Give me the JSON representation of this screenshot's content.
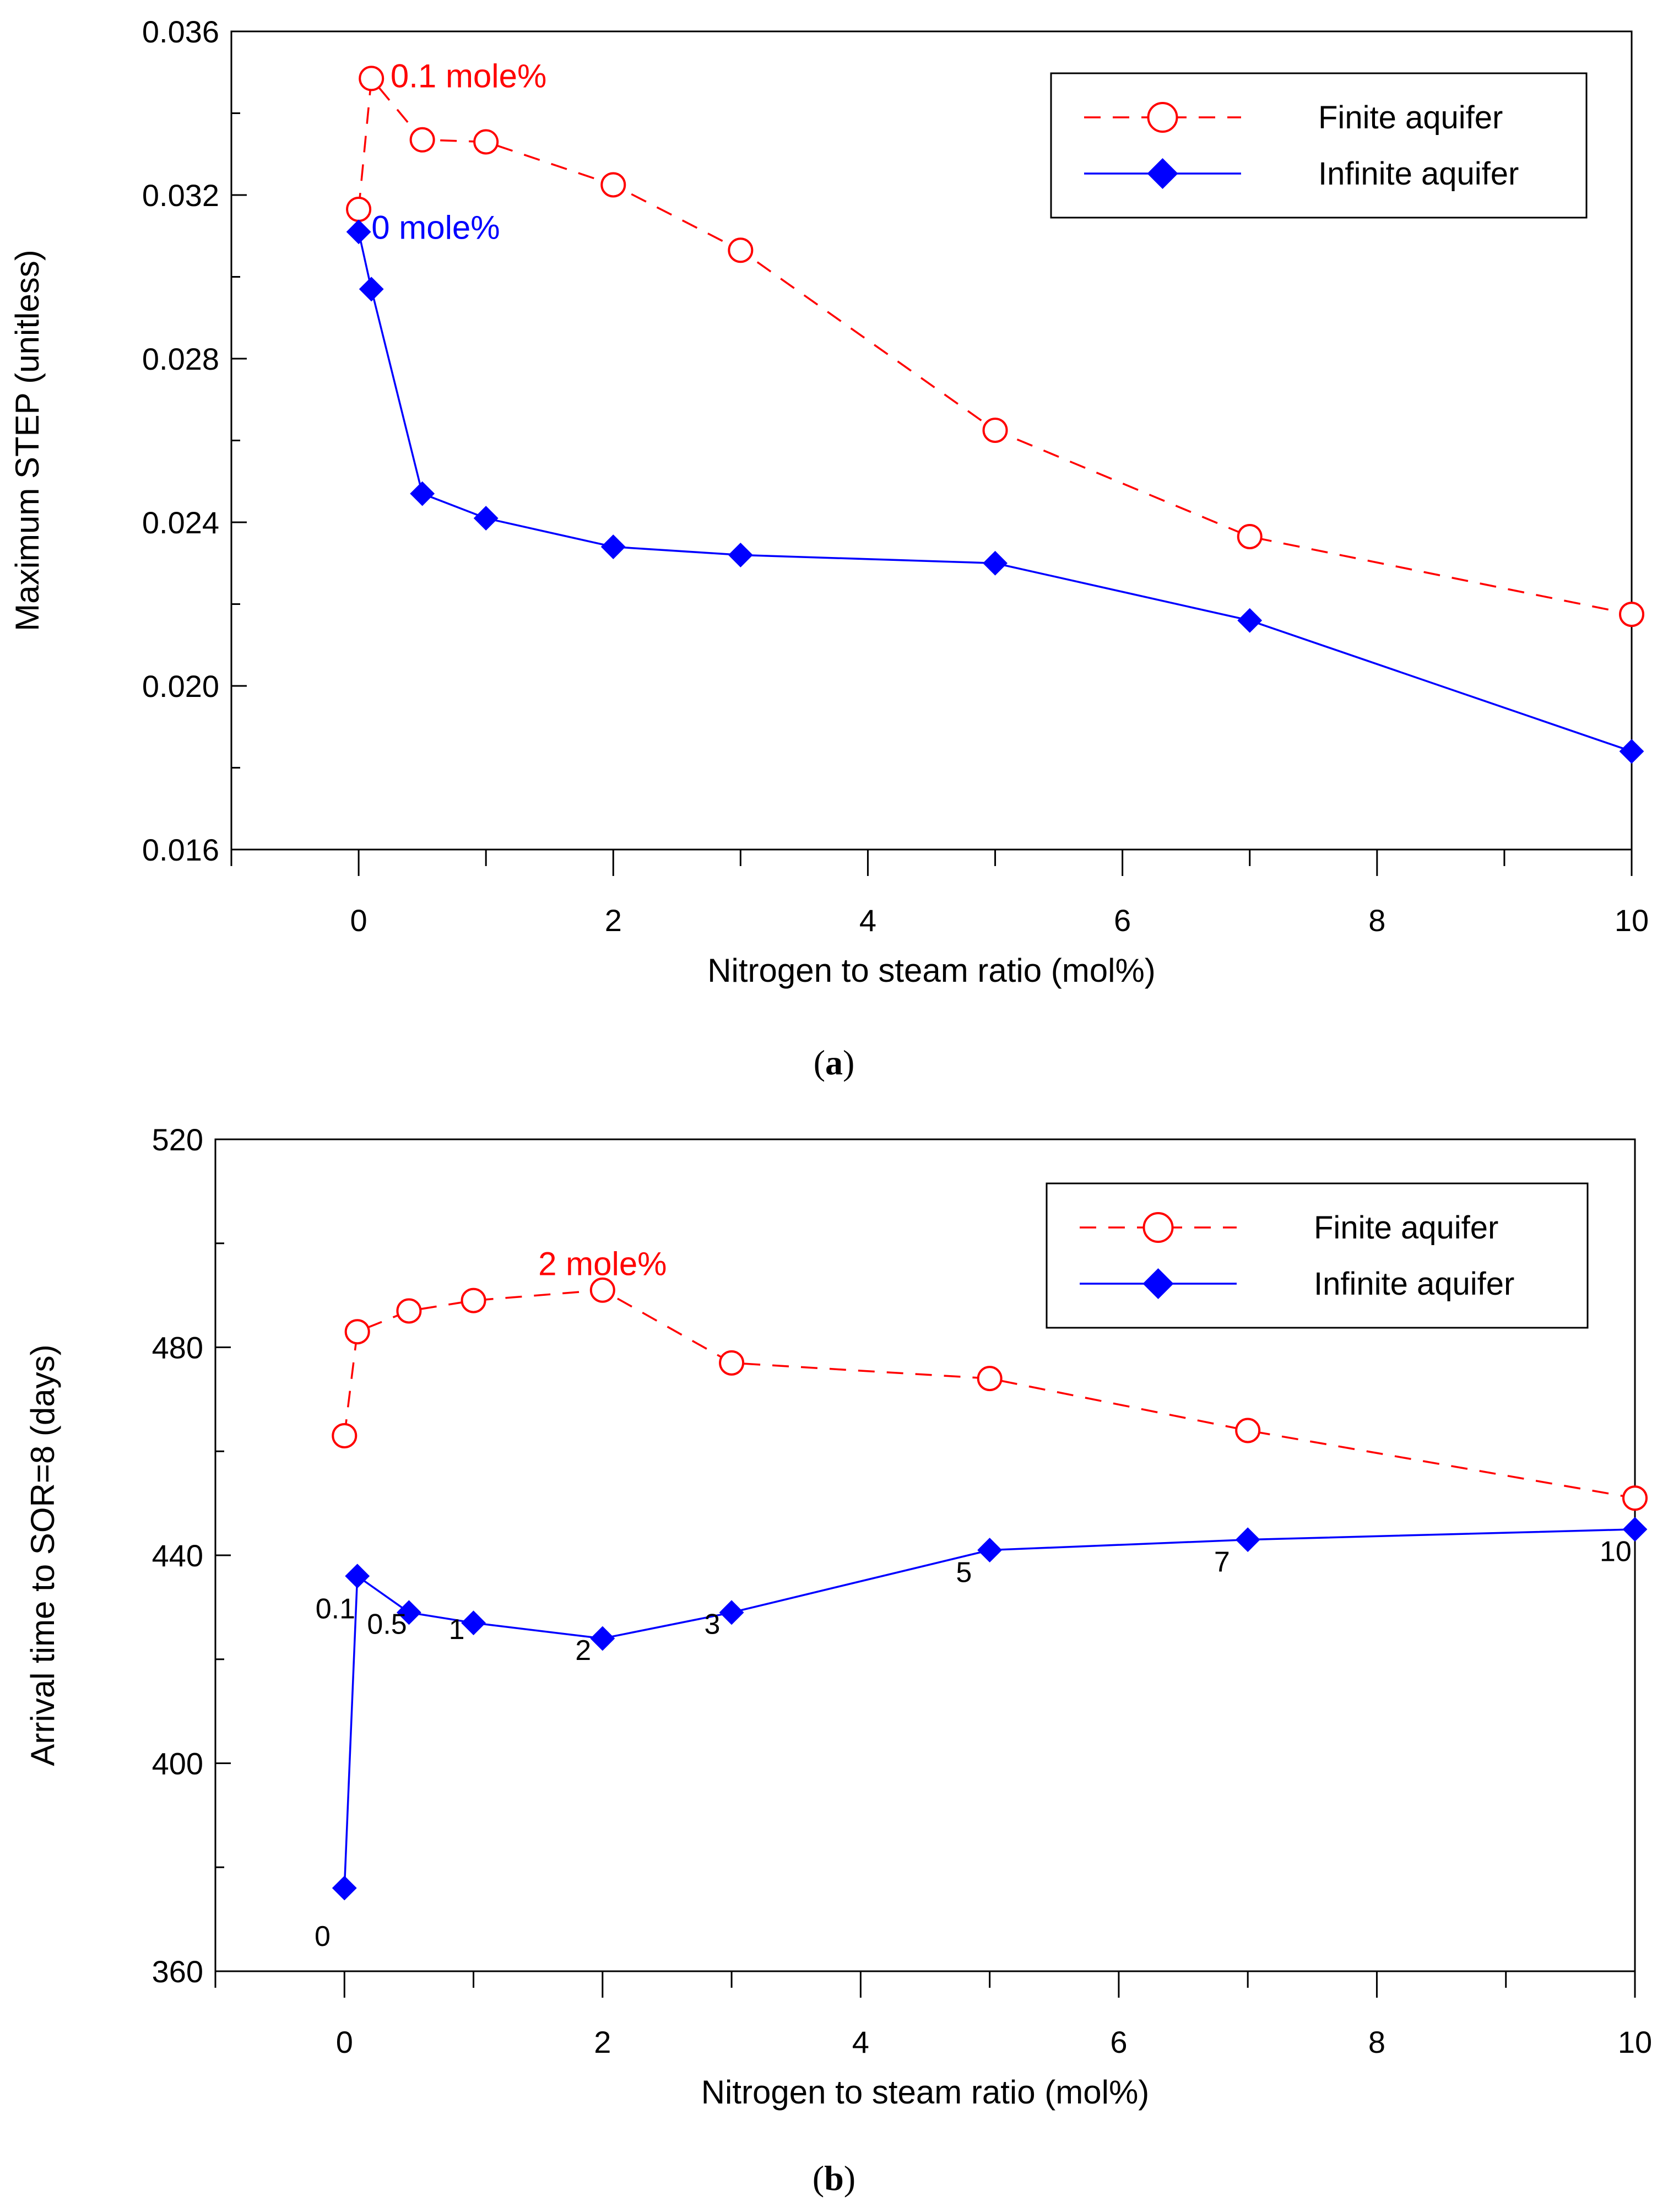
{
  "chart_data": [
    {
      "type": "line",
      "panel_label": "(a)",
      "panel_letter": "a",
      "title": "",
      "xlabel": "Nitrogen to steam ratio (mol%)",
      "ylabel": "Maximum STEP (unitless)",
      "xlim": [
        -1,
        10
      ],
      "ylim": [
        0.016,
        0.036
      ],
      "xticks": [
        0,
        2,
        4,
        6,
        8,
        10
      ],
      "yticks": [
        0.016,
        0.02,
        0.024,
        0.028,
        0.032,
        0.036
      ],
      "ytick_labels": [
        "0.016",
        "0.020",
        "0.024",
        "0.028",
        "0.032",
        "0.036"
      ],
      "grid": false,
      "legend_position": "top-right",
      "series": [
        {
          "name": "Finite aquifer",
          "color": "#ff0000",
          "line_style": "dashed",
          "marker": "open-circle",
          "x": [
            0,
            0.1,
            0.5,
            1,
            2,
            3,
            5,
            7,
            10
          ],
          "values": [
            0.03165,
            0.03485,
            0.03335,
            0.0333,
            0.03225,
            0.03065,
            0.02625,
            0.02365,
            0.02175
          ]
        },
        {
          "name": "Infinite aquifer",
          "color": "#0000ff",
          "line_style": "solid",
          "marker": "filled-diamond",
          "x": [
            0,
            0.1,
            0.5,
            1,
            2,
            3,
            5,
            7,
            10
          ],
          "values": [
            0.0311,
            0.0297,
            0.0247,
            0.0241,
            0.0234,
            0.0232,
            0.023,
            0.0216,
            0.0184
          ]
        }
      ],
      "annotations": [
        {
          "text": "0.1 mole%",
          "color": "#ff0000",
          "x": 0.25,
          "y": 0.0349
        },
        {
          "text": "0 mole%",
          "color": "#0000ff",
          "x": 0.1,
          "y": 0.0312
        }
      ]
    },
    {
      "type": "line",
      "panel_label": "(b)",
      "panel_letter": "b",
      "title": "",
      "xlabel": "Nitrogen to steam ratio (mol%)",
      "ylabel": "Arrival time to SOR=8 (days)",
      "xlim": [
        -1,
        10
      ],
      "ylim": [
        360,
        520
      ],
      "xticks": [
        0,
        2,
        4,
        6,
        8,
        10
      ],
      "yticks": [
        360,
        400,
        440,
        480,
        520
      ],
      "ytick_labels": [
        "360",
        "400",
        "440",
        "480",
        "520"
      ],
      "grid": false,
      "legend_position": "top-right",
      "series": [
        {
          "name": "Finite aquifer",
          "color": "#ff0000",
          "line_style": "dashed",
          "marker": "open-circle",
          "x": [
            0,
            0.1,
            0.5,
            1,
            2,
            3,
            5,
            7,
            10
          ],
          "values": [
            463,
            483,
            487,
            489,
            491,
            477,
            474,
            464,
            451
          ]
        },
        {
          "name": "Infinite aquifer",
          "color": "#0000ff",
          "line_style": "solid",
          "marker": "filled-diamond",
          "x": [
            0,
            0.1,
            0.5,
            1,
            2,
            3,
            5,
            7,
            10
          ],
          "values": [
            376,
            436,
            429,
            427,
            424,
            429,
            441,
            443,
            445
          ]
        }
      ],
      "annotations": [
        {
          "text": "2 mole%",
          "color": "#ff0000",
          "x": 2,
          "y": 496
        },
        {
          "text": "0",
          "color": "#000000",
          "x": -0.17,
          "y": 367
        },
        {
          "text": "0.1",
          "color": "#000000",
          "x": -0.07,
          "y": 430
        },
        {
          "text": "0.5",
          "color": "#000000",
          "x": 0.33,
          "y": 427
        },
        {
          "text": "1",
          "color": "#000000",
          "x": 0.87,
          "y": 426
        },
        {
          "text": "2",
          "color": "#000000",
          "x": 1.85,
          "y": 422
        },
        {
          "text": "3",
          "color": "#000000",
          "x": 2.85,
          "y": 427
        },
        {
          "text": "5",
          "color": "#000000",
          "x": 4.8,
          "y": 437
        },
        {
          "text": "7",
          "color": "#000000",
          "x": 6.8,
          "y": 439
        },
        {
          "text": "10",
          "color": "#000000",
          "x": 9.85,
          "y": 441
        }
      ]
    }
  ]
}
